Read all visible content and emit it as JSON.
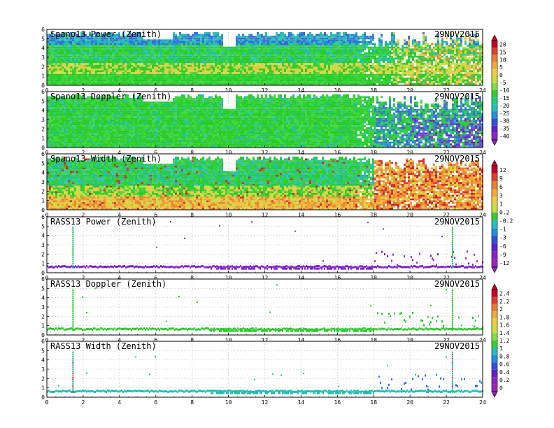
{
  "figure_date": "29NOV2015",
  "chart_data": [
    {
      "type": "heatmap",
      "title": "Spano13 Power (Zenith)",
      "date": "29NOV2015",
      "xlim": [
        0,
        24
      ],
      "ylim": [
        0,
        6
      ],
      "xticks": [
        0,
        2,
        4,
        6,
        8,
        10,
        12,
        14,
        16,
        18,
        20,
        22,
        24
      ],
      "yticks": [
        0,
        1,
        2,
        3,
        4,
        5,
        6
      ],
      "grid": true,
      "colorbar_group": "power"
    },
    {
      "type": "heatmap",
      "title": "Spano13 Doppler (Zenith)",
      "date": "29NOV2015",
      "xlim": [
        0,
        24
      ],
      "ylim": [
        0,
        6
      ],
      "xticks": [
        0,
        2,
        4,
        6,
        8,
        10,
        12,
        14,
        16,
        18,
        20,
        22,
        24
      ],
      "yticks": [
        0,
        1,
        2,
        3,
        4,
        5,
        6
      ],
      "grid": true,
      "colorbar_group": "power"
    },
    {
      "type": "heatmap",
      "title": "Spano13 Width (Zenith)",
      "date": "29NOV2015",
      "xlim": [
        0,
        24
      ],
      "ylim": [
        0,
        6
      ],
      "xticks": [
        0,
        2,
        4,
        6,
        8,
        10,
        12,
        14,
        16,
        18,
        20,
        22,
        24
      ],
      "yticks": [
        0,
        1,
        2,
        3,
        4,
        5,
        6
      ],
      "grid": true,
      "colorbar_group": "doppler"
    },
    {
      "type": "scatter",
      "title": "RASS13 Power (Zenith)",
      "date": "29NOV2015",
      "xlim": [
        0,
        24
      ],
      "ylim": [
        0,
        6
      ],
      "xticks": [
        0,
        2,
        4,
        6,
        8,
        10,
        12,
        14,
        16,
        18,
        20,
        22,
        24
      ],
      "yticks": [
        0,
        1,
        2,
        3,
        4,
        5,
        6
      ],
      "grid": true,
      "colorbar_group": "doppler"
    },
    {
      "type": "scatter",
      "title": "RASS13 Doppler (Zenith)",
      "date": "29NOV2015",
      "xlim": [
        0,
        24
      ],
      "ylim": [
        0,
        6
      ],
      "xticks": [
        0,
        2,
        4,
        6,
        8,
        10,
        12,
        14,
        16,
        18,
        20,
        22,
        24
      ],
      "yticks": [
        0,
        1,
        2,
        3,
        4,
        5,
        6
      ],
      "grid": true,
      "colorbar_group": "width"
    },
    {
      "type": "scatter",
      "title": "RASS13 Width (Zenith)",
      "date": "29NOV2015",
      "xlim": [
        0,
        24
      ],
      "ylim": [
        0,
        6
      ],
      "xticks": [
        0,
        2,
        4,
        6,
        8,
        10,
        12,
        14,
        16,
        18,
        20,
        22,
        24
      ],
      "yticks": [
        0,
        1,
        2,
        3,
        4,
        5,
        6
      ],
      "grid": true,
      "colorbar_group": "width"
    }
  ],
  "colorbars": [
    {
      "id": "power",
      "labels": [
        "20",
        "15",
        "10",
        "5",
        "0",
        "-5",
        "-10",
        "-15",
        "-20",
        "-25",
        "-30",
        "-35",
        "-40"
      ],
      "colors": [
        "#c80028",
        "#e0402a",
        "#f07a30",
        "#f4a83a",
        "#f0d040",
        "#c8e040",
        "#80e040",
        "#30d030",
        "#20d080",
        "#20c0c0",
        "#2090e0",
        "#3050e0",
        "#6020d0",
        "#9020c8"
      ]
    },
    {
      "id": "doppler",
      "labels": [
        "12",
        "9",
        "6",
        "3",
        "1",
        "0.2",
        "-0.2",
        "-1",
        "-3",
        "-6",
        "-9",
        "-12"
      ],
      "colors": [
        "#c80028",
        "#e0402a",
        "#f07a30",
        "#f4a83a",
        "#f0d040",
        "#c8e040",
        "#30d030",
        "#20c0c0",
        "#2090e0",
        "#3050e0",
        "#6020d0",
        "#9020c8",
        "#a020c0"
      ]
    },
    {
      "id": "width",
      "labels": [
        "2.4",
        "2.2",
        "2",
        "1.8",
        "1.6",
        "1.4",
        "1.2",
        "1",
        "0.8",
        "0.6",
        "0.4",
        "0.2",
        "0"
      ],
      "colors": [
        "#c80028",
        "#e0402a",
        "#f07a30",
        "#f4a83a",
        "#f0d040",
        "#c8e040",
        "#80e040",
        "#30d030",
        "#20c0c0",
        "#2090e0",
        "#3050e0",
        "#6020d0",
        "#9020c8",
        "#a020c0"
      ]
    }
  ]
}
